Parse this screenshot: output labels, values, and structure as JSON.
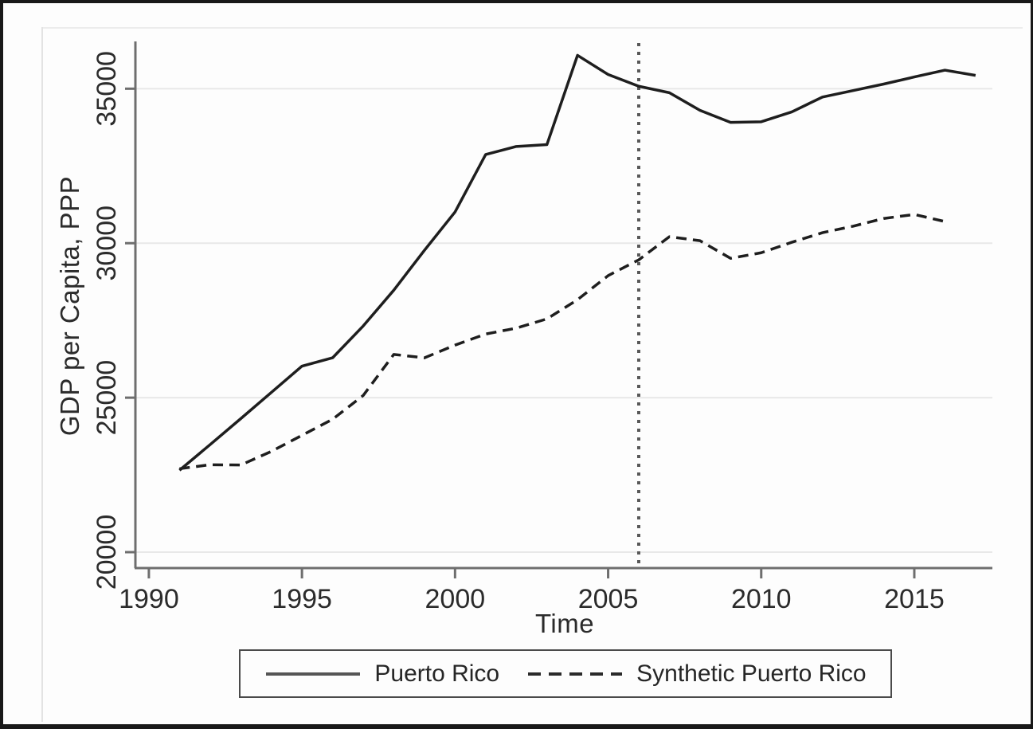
{
  "figure": {
    "background": "#fdfdfd",
    "frame_color": "#191919",
    "text_color": "#2b2b2b"
  },
  "axes": {
    "x_title": "Time",
    "y_title": "GDP per Capita, PPP"
  },
  "legend": {
    "position": "bottom",
    "entries": [
      {
        "label": "Puerto Rico",
        "style": "solid"
      },
      {
        "label": "Synthetic Puerto Rico",
        "style": "dashed"
      }
    ]
  },
  "chart_data": {
    "type": "line",
    "title": "",
    "xlabel": "Time",
    "ylabel": "GDP per Capita, PPP",
    "grid": true,
    "grid_color": "#e8e8e8",
    "axis_color": "#6e6e6e",
    "xlim": [
      1989.56,
      2017.55
    ],
    "ylim": [
      19485,
      36530
    ],
    "x_ticks": [
      1990,
      1995,
      2000,
      2005,
      2010,
      2015
    ],
    "y_ticks": [
      20000,
      25000,
      30000,
      35000
    ],
    "treatment_line": {
      "x": 2006,
      "style": "dotted",
      "color": "#585858"
    },
    "series": [
      {
        "name": "Puerto Rico",
        "style": "solid",
        "color": "#1e1e1e",
        "x": [
          1991,
          1992,
          1993,
          1994,
          1995,
          1996,
          1997,
          1998,
          1999,
          2000,
          2001,
          2002,
          2003,
          2004,
          2005,
          2006,
          2007,
          2008,
          2009,
          2010,
          2011,
          2012,
          2013,
          2014,
          2015,
          2016,
          2017
        ],
        "values": [
          22650,
          23480,
          24320,
          25170,
          26020,
          26290,
          27320,
          28480,
          29770,
          31010,
          32870,
          33130,
          33190,
          36080,
          35460,
          35080,
          34870,
          34300,
          33910,
          33930,
          34250,
          34730,
          34940,
          35150,
          35380,
          35600,
          35430
        ]
      },
      {
        "name": "Synthetic Puerto Rico",
        "style": "dashed",
        "color": "#1e1e1e",
        "x": [
          1991,
          1992,
          1993,
          1994,
          1995,
          1996,
          1997,
          1998,
          1999,
          2000,
          2001,
          2002,
          2003,
          2004,
          2005,
          2006,
          2007,
          2008,
          2009,
          2010,
          2011,
          2012,
          2013,
          2014,
          2015,
          2016
        ],
        "values": [
          22700,
          22830,
          22820,
          23260,
          23780,
          24300,
          25070,
          26400,
          26290,
          26700,
          27060,
          27250,
          27550,
          28170,
          28950,
          29460,
          30210,
          30080,
          29510,
          29690,
          30030,
          30340,
          30550,
          30800,
          30930,
          30700
        ]
      }
    ]
  }
}
